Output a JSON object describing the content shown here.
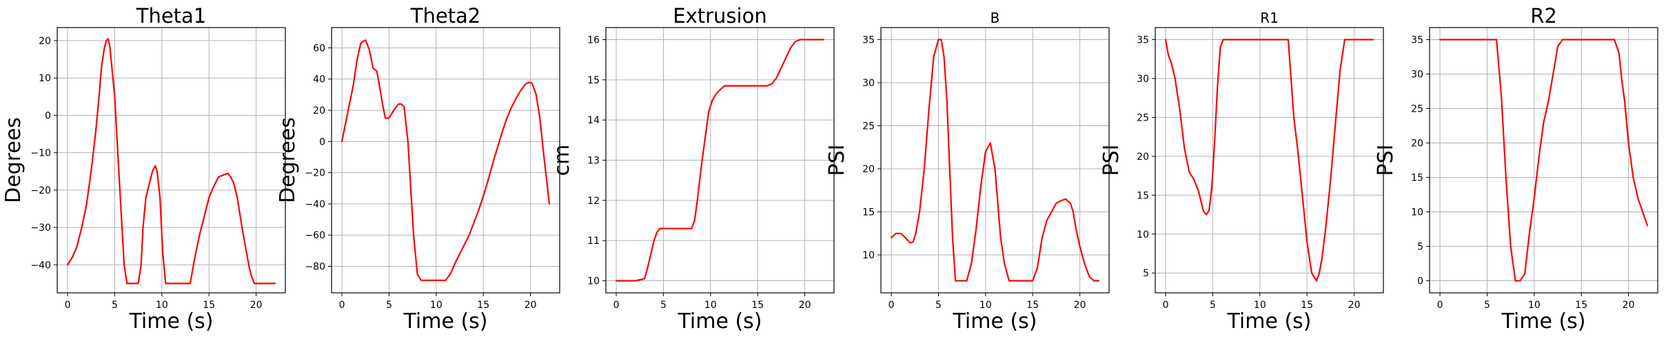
{
  "chart_data": [
    {
      "type": "line",
      "title": "Theta1",
      "title_size": "large",
      "xlabel": "Time (s)",
      "ylabel": "Degrees",
      "xlim": [
        -1.1,
        23.1
      ],
      "ylim": [
        -47.5,
        23.5
      ],
      "xticks": [
        0,
        5,
        10,
        15,
        20
      ],
      "yticks": [
        -40,
        -30,
        -20,
        -10,
        0,
        10,
        20
      ],
      "ytick_labels": [
        "−40",
        "−30",
        "−20",
        "−10",
        "0",
        "10",
        "20"
      ],
      "grid": true,
      "color": "#ff0000",
      "x": [
        0,
        0.5,
        1,
        1.5,
        2,
        2.5,
        3,
        3.3,
        3.6,
        3.9,
        4.1,
        4.3,
        4.5,
        5,
        5.5,
        6,
        6.3,
        6.6,
        7,
        7.5,
        7.8,
        8,
        8.3,
        8.6,
        9,
        9.3,
        9.5,
        9.8,
        10.1,
        10.4,
        10.8,
        11.1,
        11.5,
        12,
        12.5,
        13,
        13.5,
        14,
        14.5,
        15,
        15.5,
        16,
        16.5,
        17,
        17.3,
        17.6,
        18,
        18.5,
        19,
        19.3,
        19.5,
        19.8,
        20,
        20.5,
        21,
        21.5,
        22
      ],
      "y": [
        -40,
        -38,
        -35,
        -30,
        -24,
        -15,
        -4,
        4,
        13,
        18,
        20,
        20.5,
        18,
        5,
        -18,
        -40,
        -45,
        -45,
        -45,
        -45,
        -40,
        -30,
        -22,
        -19,
        -15,
        -13.5,
        -15,
        -22,
        -37,
        -45,
        -45,
        -45,
        -45,
        -45,
        -45,
        -45,
        -38,
        -32,
        -27,
        -22,
        -19,
        -16.5,
        -16,
        -15.5,
        -16.5,
        -18,
        -22,
        -30,
        -37,
        -41,
        -43,
        -45,
        -45,
        -45,
        -45,
        -45,
        -45
      ]
    },
    {
      "type": "line",
      "title": "Theta2",
      "title_size": "large",
      "xlabel": "Time (s)",
      "ylabel": "Degrees",
      "xlim": [
        -1.1,
        23.1
      ],
      "ylim": [
        -97,
        73
      ],
      "xticks": [
        0,
        5,
        10,
        15,
        20
      ],
      "yticks": [
        -80,
        -60,
        -40,
        -20,
        0,
        20,
        40,
        60
      ],
      "ytick_labels": [
        "−80",
        "−60",
        "−40",
        "−20",
        "0",
        "20",
        "40",
        "60"
      ],
      "grid": true,
      "color": "#ff0000",
      "x": [
        0,
        0.4,
        0.8,
        1.2,
        1.6,
        2,
        2.5,
        2.9,
        3.3,
        3.7,
        4,
        4.3,
        4.6,
        5,
        5.5,
        6,
        6.3,
        6.6,
        7,
        7.3,
        7.6,
        8,
        8.4,
        9,
        10,
        11,
        11.5,
        12,
        12.5,
        13,
        13.5,
        14,
        14.5,
        15,
        15.5,
        16,
        16.5,
        17,
        17.5,
        18,
        18.5,
        19,
        19.5,
        19.9,
        20.2,
        20.6,
        21,
        21.4,
        22
      ],
      "y": [
        0,
        12,
        24,
        36,
        52,
        63,
        65,
        59,
        47,
        45,
        35,
        24,
        15,
        15,
        20,
        24,
        24,
        22,
        0,
        -30,
        -60,
        -85,
        -89,
        -89,
        -89,
        -89,
        -85,
        -78,
        -72,
        -66,
        -60,
        -52,
        -44,
        -35,
        -25,
        -14,
        -4,
        6,
        15,
        22,
        28,
        33,
        37,
        38,
        37,
        30,
        15,
        -8,
        -40
      ]
    },
    {
      "type": "line",
      "title": "Extrusion",
      "title_size": "large",
      "xlabel": "Time (s)",
      "ylabel": "cm",
      "xlim": [
        -1.1,
        23.1
      ],
      "ylim": [
        9.7,
        16.3
      ],
      "xticks": [
        0,
        5,
        10,
        15,
        20
      ],
      "yticks": [
        10,
        11,
        12,
        13,
        14,
        15,
        16
      ],
      "ytick_labels": [
        "10",
        "11",
        "12",
        "13",
        "14",
        "15",
        "16"
      ],
      "grid": true,
      "color": "#ff0000",
      "x": [
        0,
        1,
        2,
        3,
        3.3,
        3.6,
        4,
        4.3,
        4.6,
        5,
        6,
        7,
        8,
        8.3,
        8.6,
        9,
        9.4,
        9.8,
        10.2,
        10.6,
        11,
        11.5,
        12,
        13,
        14,
        15,
        16,
        16.5,
        17,
        17.5,
        18,
        18.5,
        19,
        19.5,
        20,
        20.5,
        21,
        22
      ],
      "y": [
        10,
        10,
        10,
        10.05,
        10.3,
        10.6,
        11,
        11.2,
        11.3,
        11.3,
        11.3,
        11.3,
        11.3,
        11.5,
        12,
        12.8,
        13.5,
        14.2,
        14.5,
        14.65,
        14.75,
        14.85,
        14.85,
        14.85,
        14.85,
        14.85,
        14.85,
        14.9,
        15.05,
        15.3,
        15.55,
        15.8,
        15.95,
        16,
        16,
        16,
        16,
        16
      ]
    },
    {
      "type": "line",
      "title": "B",
      "title_size": "small",
      "xlabel": "Time (s)",
      "ylabel": "PSI",
      "xlim": [
        -1.1,
        23.1
      ],
      "ylim": [
        5.6,
        36.4
      ],
      "xticks": [
        0,
        5,
        10,
        15,
        20
      ],
      "yticks": [
        10,
        15,
        20,
        25,
        30,
        35
      ],
      "ytick_labels": [
        "10",
        "15",
        "20",
        "25",
        "30",
        "35"
      ],
      "grid": true,
      "color": "#ff0000",
      "x": [
        0,
        0.5,
        1,
        1.5,
        2,
        2.3,
        2.6,
        3,
        3.5,
        4,
        4.5,
        5,
        5.3,
        5.6,
        5.9,
        6.2,
        6.5,
        6.8,
        7.2,
        7.6,
        8,
        8.5,
        9,
        9.5,
        10,
        10.5,
        11,
        11.3,
        11.6,
        12,
        12.5,
        13,
        13.5,
        14,
        15,
        15.5,
        16,
        16.5,
        17,
        17.5,
        18,
        18.5,
        19,
        19.3,
        19.6,
        20,
        20.5,
        21,
        21.5,
        22
      ],
      "y": [
        12,
        12.5,
        12.5,
        12,
        11.4,
        11.5,
        12.5,
        15,
        20,
        27,
        33,
        35,
        35,
        33,
        28,
        20,
        12,
        7,
        7,
        7,
        7,
        9,
        13,
        18,
        22,
        23,
        20,
        16,
        12,
        9,
        7,
        7,
        7,
        7,
        7,
        8.5,
        12,
        14,
        15,
        16,
        16.3,
        16.5,
        16,
        15,
        13,
        11,
        9,
        7.5,
        7,
        7
      ]
    },
    {
      "type": "line",
      "title": "R1",
      "title_size": "small",
      "xlabel": "Time (s)",
      "ylabel": "PSI",
      "xlim": [
        -1.1,
        23.1
      ],
      "ylim": [
        2.45,
        36.55
      ],
      "xticks": [
        0,
        5,
        10,
        15,
        20
      ],
      "yticks": [
        5,
        10,
        15,
        20,
        25,
        30,
        35
      ],
      "ytick_labels": [
        "5",
        "10",
        "15",
        "20",
        "25",
        "30",
        "35"
      ],
      "grid": true,
      "color": "#ff0000",
      "x": [
        0,
        0.3,
        0.6,
        1,
        1.5,
        2,
        2.5,
        3,
        3.5,
        4,
        4.3,
        4.6,
        4.9,
        5.2,
        5.5,
        5.8,
        6.1,
        6.4,
        6.7,
        7,
        8,
        9,
        10,
        11,
        12,
        13,
        13.3,
        13.6,
        14,
        14.5,
        15,
        15.5,
        16,
        16.3,
        16.6,
        17,
        17.5,
        18,
        18.5,
        19,
        19.5,
        20,
        21,
        22
      ],
      "y": [
        35,
        33,
        32,
        30,
        26,
        21,
        18,
        17,
        15.5,
        13,
        12.5,
        13,
        16,
        22,
        29,
        34,
        35,
        35,
        35,
        35,
        35,
        35,
        35,
        35,
        35,
        35,
        30,
        25,
        21,
        15,
        9,
        5,
        4,
        5,
        7,
        11,
        17,
        24,
        31,
        35,
        35,
        35,
        35,
        35
      ]
    },
    {
      "type": "line",
      "title": "R2",
      "title_size": "large",
      "xlabel": "Time (s)",
      "ylabel": "PSI",
      "xlim": [
        -1.1,
        23.1
      ],
      "ylim": [
        -1.75,
        36.75
      ],
      "xticks": [
        0,
        5,
        10,
        15,
        20
      ],
      "yticks": [
        0,
        5,
        10,
        15,
        20,
        25,
        30,
        35
      ],
      "ytick_labels": [
        "0",
        "5",
        "10",
        "15",
        "20",
        "25",
        "30",
        "35"
      ],
      "grid": true,
      "color": "#ff0000",
      "x": [
        0,
        1,
        2,
        3,
        4,
        5,
        6,
        6.5,
        7,
        7.5,
        8,
        8.5,
        9,
        9.5,
        10,
        10.5,
        11,
        11.5,
        12,
        12.5,
        13,
        13.5,
        14,
        15,
        16,
        17,
        18,
        18.5,
        19,
        19.3,
        19.6,
        20,
        20.5,
        21,
        21.5,
        22
      ],
      "y": [
        35,
        35,
        35,
        35,
        35,
        35,
        35,
        27,
        15,
        5,
        0,
        0,
        1,
        7,
        12,
        18,
        23,
        26,
        30,
        34,
        35,
        35,
        35,
        35,
        35,
        35,
        35,
        35,
        33,
        29,
        26,
        20,
        15,
        12,
        10,
        8
      ]
    }
  ]
}
